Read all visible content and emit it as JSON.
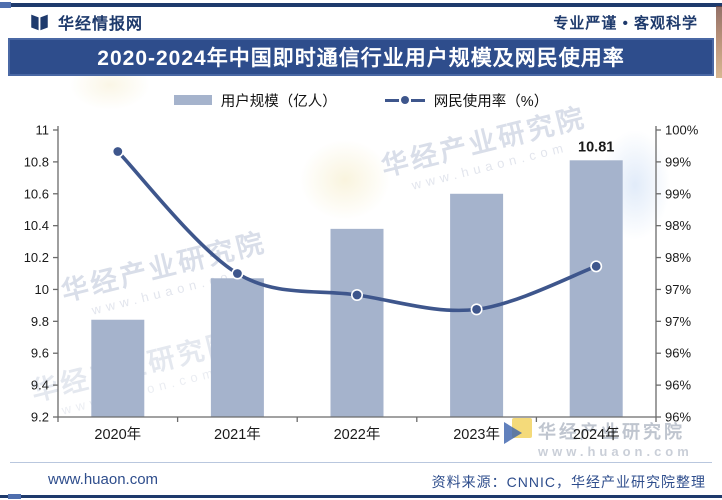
{
  "header": {
    "brand": "华经情报网",
    "slogan": "专业严谨 • 客观科学"
  },
  "title": "2020-2024年中国即时通信行业用户规模及网民使用率",
  "legend": {
    "bar_label": "用户规模（亿人）",
    "line_label": "网民使用率（%）"
  },
  "chart_data": {
    "type": "bar+line combo",
    "categories": [
      "2020年",
      "2021年",
      "2022年",
      "2023年",
      "2024年"
    ],
    "series": [
      {
        "name": "用户规模（亿人）",
        "type": "bar",
        "axis": "left",
        "values": [
          9.81,
          10.07,
          10.38,
          10.6,
          10.81
        ],
        "data_labels": [
          null,
          null,
          null,
          null,
          "10.81"
        ]
      },
      {
        "name": "网民使用率（%）",
        "type": "line",
        "axis": "right",
        "values": [
          99.7,
          98.0,
          97.7,
          97.5,
          98.1
        ]
      }
    ],
    "left_axis": {
      "min": 9.2,
      "max": 11,
      "tick_labels": [
        "11",
        "10.8",
        "10.6",
        "10.4",
        "10.2",
        "10",
        "9.8",
        "9.6",
        "9.4",
        "9.2"
      ]
    },
    "right_axis": {
      "min": 96,
      "max": 100,
      "tick_labels": [
        "100%",
        "99%",
        "99%",
        "98%",
        "98%",
        "97%",
        "97%",
        "96%",
        "96%",
        "96%"
      ]
    },
    "grid": false,
    "legend_position": "top"
  },
  "footer": {
    "site": "www.huaon.com",
    "source": "资料来源：CNNIC，华经产业研究院整理"
  },
  "watermark": {
    "text": "华经产业研究院",
    "url": "www.huaon.com"
  },
  "colors": {
    "navy": "#1e3a6c",
    "title_bg": "#2e4d8c",
    "title_border": "#4a68a4",
    "bar": "#a5b3cc",
    "line": "#3e568c",
    "axis": "#6b6b6b",
    "tick_text": "#1a1a1a",
    "accent_light": "#4f6fae"
  }
}
